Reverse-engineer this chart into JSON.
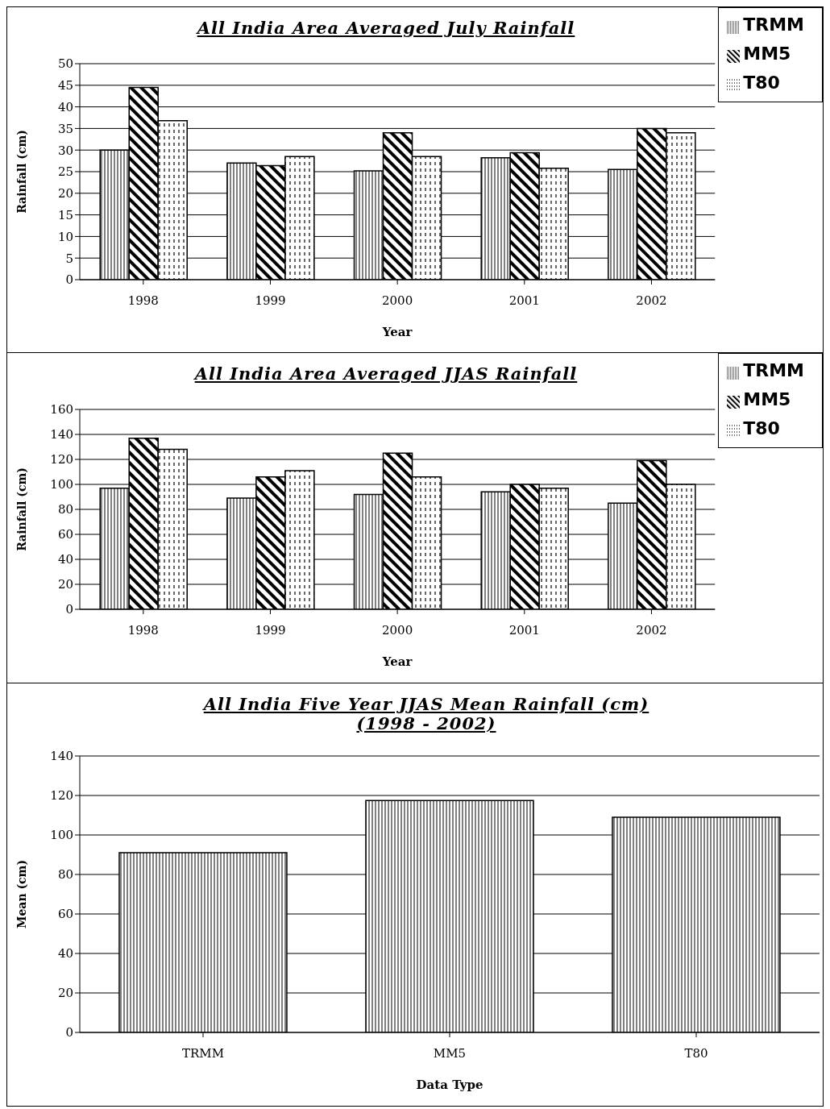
{
  "chart_data": [
    {
      "type": "bar",
      "title": "All India Area Averaged July Rainfall",
      "xlabel": "Year",
      "ylabel": "Rainfall (cm)",
      "categories": [
        "1998",
        "1999",
        "2000",
        "2001",
        "2002"
      ],
      "series": [
        {
          "name": "TRMM",
          "color": "#000000",
          "values": [
            30,
            27,
            25.2,
            28.2,
            25.5
          ]
        },
        {
          "name": "MM5",
          "color": "#000000",
          "values": [
            44.5,
            26.4,
            34,
            29.4,
            35
          ]
        },
        {
          "name": "T80",
          "color": "#000000",
          "values": [
            36.8,
            28.5,
            28.5,
            25.8,
            34
          ]
        }
      ],
      "ylim": [
        0,
        50
      ],
      "yticks": [
        0,
        5,
        10,
        15,
        20,
        25,
        30,
        35,
        40,
        45,
        50
      ],
      "grid": "y",
      "legend": "top right"
    },
    {
      "type": "bar",
      "title": "All India Area Averaged JJAS Rainfall",
      "xlabel": "Year",
      "ylabel": "Rainfall (cm)",
      "categories": [
        "1998",
        "1999",
        "2000",
        "2001",
        "2002"
      ],
      "series": [
        {
          "name": "TRMM",
          "color": "#000000",
          "values": [
            97,
            89,
            92,
            94,
            85
          ]
        },
        {
          "name": "MM5",
          "color": "#000000",
          "values": [
            137,
            106,
            125,
            100,
            119
          ]
        },
        {
          "name": "T80",
          "color": "#000000",
          "values": [
            128,
            111,
            106,
            97,
            100
          ]
        }
      ],
      "ylim": [
        0,
        160
      ],
      "yticks": [
        0,
        20,
        40,
        60,
        80,
        100,
        120,
        140,
        160
      ],
      "grid": "y",
      "legend": "top right"
    },
    {
      "type": "bar",
      "title": "All India Five Year JJAS Mean Rainfall (cm)",
      "subtitle": "(1998 - 2002)",
      "xlabel": "Data Type",
      "ylabel": "Mean (cm)",
      "categories": [
        "TRMM",
        "MM5",
        "T80"
      ],
      "series": [
        {
          "color": "#000000",
          "values": [
            91,
            117.5,
            109
          ]
        }
      ],
      "ylim": [
        0,
        140
      ],
      "yticks": [
        0,
        20,
        40,
        60,
        80,
        100,
        120,
        140
      ],
      "grid": "y"
    }
  ]
}
